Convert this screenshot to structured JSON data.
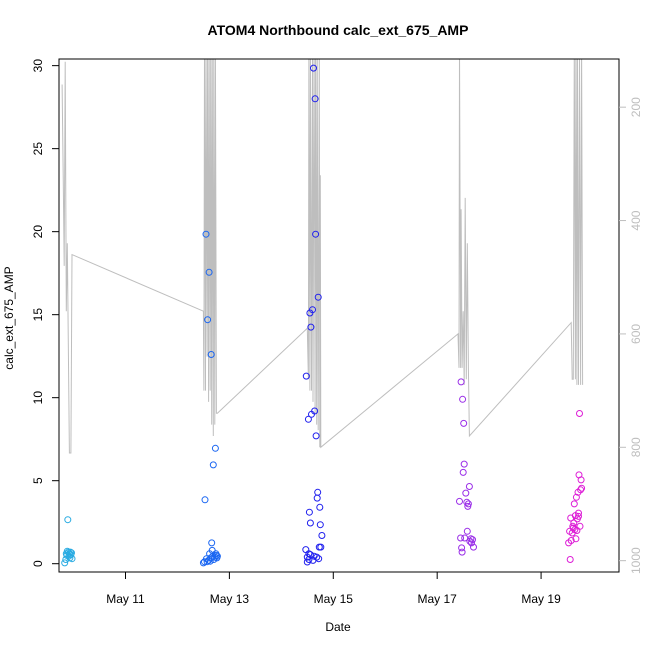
{
  "chart_data": {
    "type": "scatter",
    "title": "ATOM4 Northbound calc_ext_675_AMP",
    "xlabel": "Date",
    "ylabel": "calc_ext_675_AMP",
    "x_unit": "days in May",
    "xlim": [
      9.72,
      20.5
    ],
    "ylim": [
      -0.5,
      30.4
    ],
    "x_ticks": [
      {
        "x": 11,
        "label": "May 11"
      },
      {
        "x": 13,
        "label": "May 13"
      },
      {
        "x": 15,
        "label": "May 15"
      },
      {
        "x": 17,
        "label": "May 17"
      },
      {
        "x": 19,
        "label": "May 19"
      }
    ],
    "y_ticks": [
      0,
      5,
      10,
      15,
      20,
      25,
      30
    ],
    "right_axis": {
      "ticks": [
        200,
        400,
        600,
        800,
        1000
      ],
      "lim": [
        115,
        1020
      ],
      "color": "#bebebe"
    },
    "grid": false,
    "legend": "none",
    "scatter_groups": [
      {
        "color": "#29abe2",
        "points": [
          [
            9.83,
            0.05
          ],
          [
            9.85,
            0.25
          ],
          [
            9.86,
            0.6
          ],
          [
            9.87,
            0.5
          ],
          [
            9.88,
            0.75
          ],
          [
            9.89,
            2.65
          ],
          [
            9.9,
            0.7
          ],
          [
            9.91,
            0.45
          ],
          [
            9.92,
            0.6
          ],
          [
            9.93,
            0.35
          ],
          [
            9.94,
            0.7
          ],
          [
            9.95,
            0.55
          ],
          [
            9.96,
            0.65
          ],
          [
            9.97,
            0.3
          ]
        ]
      },
      {
        "color": "#1a66f2",
        "points": [
          [
            12.5,
            0.05
          ],
          [
            12.52,
            0.12
          ],
          [
            12.53,
            3.85
          ],
          [
            12.55,
            19.85
          ],
          [
            12.56,
            0.3
          ],
          [
            12.57,
            0.12
          ],
          [
            12.58,
            14.7
          ],
          [
            12.6,
            0.2
          ],
          [
            12.61,
            17.55
          ],
          [
            12.62,
            0.6
          ],
          [
            12.63,
            0.15
          ],
          [
            12.64,
            0.35
          ],
          [
            12.65,
            12.6
          ],
          [
            12.66,
            1.25
          ],
          [
            12.67,
            0.8
          ],
          [
            12.68,
            0.45
          ],
          [
            12.69,
            5.95
          ],
          [
            12.7,
            0.25
          ],
          [
            12.72,
            0.4
          ],
          [
            12.73,
            6.95
          ],
          [
            12.74,
            0.6
          ],
          [
            12.75,
            0.5
          ],
          [
            12.76,
            0.35
          ],
          [
            12.77,
            0.45
          ]
        ]
      },
      {
        "color": "#2020ee",
        "points": [
          [
            14.47,
            0.85
          ],
          [
            14.48,
            11.3
          ],
          [
            14.5,
            0.4
          ],
          [
            14.52,
            8.7
          ],
          [
            14.53,
            0.25
          ],
          [
            14.54,
            3.1
          ],
          [
            14.55,
            15.1
          ],
          [
            14.56,
            0.55
          ],
          [
            14.57,
            14.25
          ],
          [
            14.58,
            9.0
          ],
          [
            14.6,
            15.3
          ],
          [
            14.61,
            0.2
          ],
          [
            14.62,
            29.85
          ],
          [
            14.63,
            0.45
          ],
          [
            14.64,
            9.2
          ],
          [
            14.65,
            28.0
          ],
          [
            14.66,
            19.85
          ],
          [
            14.67,
            7.7
          ],
          [
            14.68,
            0.4
          ],
          [
            14.69,
            3.95
          ],
          [
            14.7,
            4.3
          ],
          [
            14.71,
            16.05
          ],
          [
            14.72,
            0.3
          ],
          [
            14.73,
            1.0
          ],
          [
            14.74,
            3.4
          ],
          [
            14.75,
            2.35
          ],
          [
            14.76,
            1.0
          ],
          [
            14.78,
            1.7
          ],
          [
            14.56,
            2.45
          ],
          [
            14.5,
            0.1
          ],
          [
            14.53,
            0.6
          ]
        ]
      },
      {
        "color": "#9a2ee8",
        "points": [
          [
            17.43,
            3.75
          ],
          [
            17.45,
            1.55
          ],
          [
            17.46,
            10.95
          ],
          [
            17.47,
            0.95
          ],
          [
            17.48,
            0.7
          ],
          [
            17.49,
            9.9
          ],
          [
            17.5,
            5.5
          ],
          [
            17.51,
            8.45
          ],
          [
            17.52,
            6.0
          ],
          [
            17.53,
            1.55
          ],
          [
            17.55,
            4.25
          ],
          [
            17.57,
            3.7
          ],
          [
            17.58,
            1.95
          ],
          [
            17.59,
            3.45
          ],
          [
            17.6,
            3.6
          ],
          [
            17.62,
            4.65
          ],
          [
            17.63,
            1.35
          ],
          [
            17.65,
            1.5
          ],
          [
            17.66,
            1.25
          ],
          [
            17.68,
            1.45
          ],
          [
            17.7,
            1.0
          ]
        ]
      },
      {
        "color": "#dd1dd6",
        "points": [
          [
            19.53,
            1.25
          ],
          [
            19.55,
            1.95
          ],
          [
            19.56,
            0.25
          ],
          [
            19.57,
            2.75
          ],
          [
            19.58,
            1.4
          ],
          [
            19.6,
            1.85
          ],
          [
            19.61,
            2.25
          ],
          [
            19.63,
            2.45
          ],
          [
            19.64,
            3.6
          ],
          [
            19.65,
            2.05
          ],
          [
            19.66,
            2.9
          ],
          [
            19.67,
            1.5
          ],
          [
            19.68,
            4.0
          ],
          [
            19.7,
            2.7
          ],
          [
            19.71,
            4.3
          ],
          [
            19.72,
            3.05
          ],
          [
            19.73,
            5.35
          ],
          [
            19.74,
            9.05
          ],
          [
            19.75,
            2.25
          ],
          [
            19.76,
            4.45
          ],
          [
            19.77,
            5.05
          ],
          [
            19.78,
            4.55
          ],
          [
            19.62,
            2.15
          ],
          [
            19.69,
            2.0
          ],
          [
            19.72,
            2.85
          ]
        ]
      }
    ],
    "line_series": {
      "color": "#bebebe",
      "axis": "right",
      "points": [
        [
          9.78,
          160
        ],
        [
          9.8,
          320
        ],
        [
          9.82,
          480
        ],
        [
          9.84,
          120
        ],
        [
          9.86,
          560
        ],
        [
          9.88,
          440
        ],
        [
          9.92,
          810
        ],
        [
          9.95,
          810
        ],
        [
          9.97,
          460
        ],
        [
          12.5,
          560
        ],
        [
          12.51,
          700
        ],
        [
          12.52,
          90
        ],
        [
          12.54,
          700
        ],
        [
          12.55,
          90
        ],
        [
          12.57,
          640
        ],
        [
          12.58,
          90
        ],
        [
          12.6,
          720
        ],
        [
          12.61,
          90
        ],
        [
          12.63,
          700
        ],
        [
          12.64,
          90
        ],
        [
          12.66,
          760
        ],
        [
          12.67,
          90
        ],
        [
          12.69,
          780
        ],
        [
          12.7,
          90
        ],
        [
          12.72,
          760
        ],
        [
          12.73,
          90
        ],
        [
          12.75,
          740
        ],
        [
          12.77,
          740
        ],
        [
          14.5,
          590
        ],
        [
          14.52,
          680
        ],
        [
          14.53,
          90
        ],
        [
          14.55,
          700
        ],
        [
          14.56,
          90
        ],
        [
          14.58,
          700
        ],
        [
          14.6,
          90
        ],
        [
          14.61,
          720
        ],
        [
          14.63,
          90
        ],
        [
          14.65,
          740
        ],
        [
          14.66,
          90
        ],
        [
          14.68,
          760
        ],
        [
          14.69,
          90
        ],
        [
          14.71,
          770
        ],
        [
          14.73,
          90
        ],
        [
          14.74,
          800
        ],
        [
          14.75,
          320
        ],
        [
          14.76,
          800
        ],
        [
          17.4,
          600
        ],
        [
          17.42,
          660
        ],
        [
          17.43,
          90
        ],
        [
          17.45,
          660
        ],
        [
          17.46,
          380
        ],
        [
          17.48,
          660
        ],
        [
          17.5,
          560
        ],
        [
          17.52,
          690
        ],
        [
          17.54,
          360
        ],
        [
          17.56,
          680
        ],
        [
          17.58,
          440
        ],
        [
          17.6,
          660
        ],
        [
          17.62,
          780
        ],
        [
          19.58,
          580
        ],
        [
          19.6,
          680
        ],
        [
          19.62,
          680
        ],
        [
          19.64,
          90
        ],
        [
          19.66,
          680
        ],
        [
          19.67,
          90
        ],
        [
          19.69,
          690
        ],
        [
          19.7,
          90
        ],
        [
          19.72,
          690
        ],
        [
          19.74,
          90
        ],
        [
          19.76,
          690
        ],
        [
          19.78,
          90
        ],
        [
          19.8,
          690
        ]
      ]
    }
  }
}
